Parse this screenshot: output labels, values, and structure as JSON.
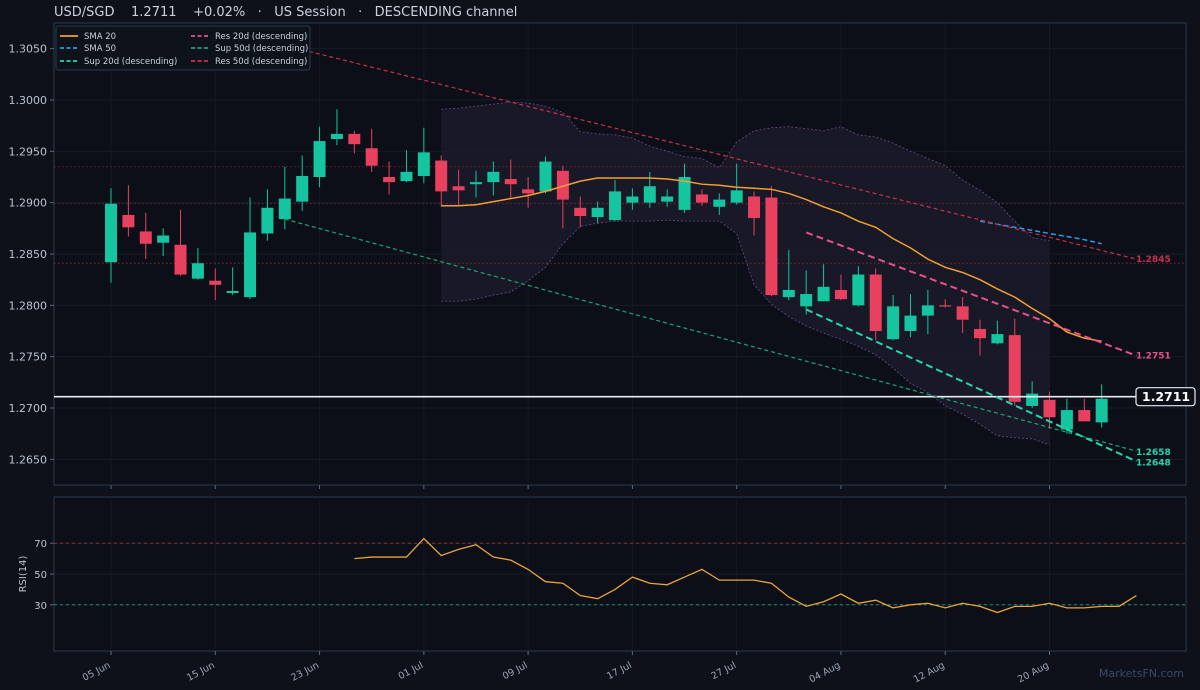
{
  "header": {
    "pair": "USD/SGD",
    "price": "1.2711",
    "change": "+0.02%",
    "sep1": "·",
    "session": "US Session",
    "sep2": "·",
    "pattern": "DESCENDING channel"
  },
  "watermark": "MarketsFN.com",
  "colors": {
    "bg": "#0e111a",
    "up": "#14c5a0",
    "down": "#e8415f",
    "sma20": "#f0a030",
    "sma50": "#2e9be0",
    "res": "#e8508a",
    "res50": "#c8304f",
    "sup": "#26d6b0",
    "sup50": "#1aa576",
    "rsi": "#e8a43a"
  },
  "legend": [
    {
      "label": "SMA 20",
      "color": "#f0a030",
      "style": "solid"
    },
    {
      "label": "Res 20d (descending)",
      "color": "#e8508a",
      "style": "dashed"
    },
    {
      "label": "SMA 50",
      "color": "#2e9be0",
      "style": "dashed"
    },
    {
      "label": "Sup 50d (descending)",
      "color": "#1aa576",
      "style": "dashed"
    },
    {
      "label": "Sup 20d (descending)",
      "color": "#26d6b0",
      "style": "dashed"
    },
    {
      "label": "Res 50d (descending)",
      "color": "#c8304f",
      "style": "dashed"
    }
  ],
  "price_labels": {
    "current": "1.2711",
    "res50": "1.2845",
    "res20": "1.2751",
    "sup50": "1.2658",
    "sup20": "1.2648"
  },
  "chart_data": {
    "type": "candlestick",
    "ylim": [
      1.2625,
      1.3075
    ],
    "yticks": [
      "1.2650",
      "1.2700",
      "1.2750",
      "1.2800",
      "1.2850",
      "1.2900",
      "1.2950",
      "1.3000",
      "1.3050"
    ],
    "ytick_values": [
      1.265,
      1.27,
      1.275,
      1.28,
      1.285,
      1.29,
      1.295,
      1.3,
      1.305
    ],
    "xticks": [
      "05 Jun",
      "15 Jun",
      "23 Jun",
      "01 Jul",
      "09 Jul",
      "17 Jul",
      "27 Jul",
      "04 Aug",
      "12 Aug",
      "20 Aug"
    ],
    "xtick_index": [
      0,
      6,
      12,
      18,
      24,
      30,
      36,
      42,
      48,
      54
    ],
    "horizontal_levels": [
      1.2935,
      1.2899,
      1.2841
    ],
    "current_price": 1.2711,
    "candles": [
      [
        1.2842,
        1.2914,
        1.2822,
        1.2899
      ],
      [
        1.2888,
        1.2917,
        1.2867,
        1.2876
      ],
      [
        1.2872,
        1.289,
        1.2845,
        1.286
      ],
      [
        1.2861,
        1.2875,
        1.2848,
        1.2868
      ],
      [
        1.2859,
        1.2893,
        1.2829,
        1.283
      ],
      [
        1.2826,
        1.2856,
        1.2825,
        1.2841
      ],
      [
        1.2824,
        1.2836,
        1.2805,
        1.282
      ],
      [
        1.2812,
        1.2837,
        1.281,
        1.2814
      ],
      [
        1.2808,
        1.2905,
        1.2806,
        1.2871
      ],
      [
        1.287,
        1.2913,
        1.2863,
        1.2895
      ],
      [
        1.2884,
        1.2935,
        1.2874,
        1.2904
      ],
      [
        1.2901,
        1.2946,
        1.2892,
        1.2926
      ],
      [
        1.2925,
        1.2974,
        1.2915,
        1.296
      ],
      [
        1.2962,
        1.2991,
        1.2956,
        1.2967
      ],
      [
        1.2967,
        1.297,
        1.2948,
        1.2957
      ],
      [
        1.2953,
        1.2972,
        1.293,
        1.2936
      ],
      [
        1.2925,
        1.294,
        1.2908,
        1.292
      ],
      [
        1.2921,
        1.2951,
        1.292,
        1.293
      ],
      [
        1.2926,
        1.2973,
        1.2919,
        1.2949
      ],
      [
        1.2941,
        1.2946,
        1.2896,
        1.2911
      ],
      [
        1.2916,
        1.2932,
        1.2897,
        1.2912
      ],
      [
        1.2918,
        1.2931,
        1.2905,
        1.292
      ],
      [
        1.292,
        1.294,
        1.2907,
        1.293
      ],
      [
        1.2923,
        1.2942,
        1.2904,
        1.2918
      ],
      [
        1.2913,
        1.2925,
        1.2895,
        1.2909
      ],
      [
        1.2911,
        1.2945,
        1.2909,
        1.294
      ],
      [
        1.2931,
        1.2936,
        1.2875,
        1.2903
      ],
      [
        1.2895,
        1.2906,
        1.2876,
        1.2887
      ],
      [
        1.2886,
        1.2901,
        1.288,
        1.2895
      ],
      [
        1.2883,
        1.2922,
        1.2882,
        1.2911
      ],
      [
        1.29,
        1.2914,
        1.2893,
        1.2906
      ],
      [
        1.29,
        1.293,
        1.2895,
        1.2916
      ],
      [
        1.2901,
        1.2913,
        1.2896,
        1.2906
      ],
      [
        1.2893,
        1.2938,
        1.289,
        1.2925
      ],
      [
        1.2908,
        1.2913,
        1.2897,
        1.29
      ],
      [
        1.2896,
        1.2909,
        1.2888,
        1.2903
      ],
      [
        1.29,
        1.2938,
        1.2898,
        1.2912
      ],
      [
        1.2906,
        1.2911,
        1.2868,
        1.2885
      ],
      [
        1.2905,
        1.2916,
        1.2809,
        1.281
      ],
      [
        1.2808,
        1.2854,
        1.2805,
        1.2815
      ],
      [
        1.2799,
        1.2834,
        1.2791,
        1.2811
      ],
      [
        1.2804,
        1.284,
        1.2804,
        1.2818
      ],
      [
        1.2815,
        1.283,
        1.2805,
        1.2806
      ],
      [
        1.28,
        1.2838,
        1.2799,
        1.283
      ],
      [
        1.283,
        1.2836,
        1.2766,
        1.2775
      ],
      [
        1.2767,
        1.281,
        1.2766,
        1.2799
      ],
      [
        1.2775,
        1.2811,
        1.2769,
        1.279
      ],
      [
        1.279,
        1.2815,
        1.2772,
        1.28
      ],
      [
        1.28,
        1.2806,
        1.2798,
        1.2799
      ],
      [
        1.2799,
        1.2808,
        1.2773,
        1.2786
      ],
      [
        1.2777,
        1.2786,
        1.2751,
        1.2768
      ],
      [
        1.2763,
        1.2785,
        1.2762,
        1.2772
      ],
      [
        1.2771,
        1.2787,
        1.2702,
        1.2706
      ],
      [
        1.2702,
        1.2726,
        1.27,
        1.2714
      ],
      [
        1.2708,
        1.2716,
        1.268,
        1.2691
      ],
      [
        1.2679,
        1.2709,
        1.2675,
        1.2698
      ],
      [
        1.2698,
        1.2709,
        1.2687,
        1.2687
      ],
      [
        1.2686,
        1.2723,
        1.2681,
        1.2709
      ]
    ],
    "sma20_start": 19,
    "sma20": [
      1.2897,
      1.2897,
      1.2898,
      1.2901,
      1.2904,
      1.2907,
      1.2911,
      1.2916,
      1.2921,
      1.2924,
      1.2924,
      1.2924,
      1.2924,
      1.2923,
      1.2921,
      1.2918,
      1.2917,
      1.2915,
      1.2914,
      1.2913,
      1.2909,
      1.2903,
      1.2896,
      1.289,
      1.2882,
      1.2876,
      1.2865,
      1.2856,
      1.2845,
      1.2837,
      1.2832,
      1.2825,
      1.2816,
      1.2808,
      1.2797,
      1.2787,
      1.2774,
      1.2768,
      1.2765
    ],
    "sma50_start": 50,
    "sma50": [
      1.2882,
      1.2879,
      1.2876,
      1.2873,
      1.287,
      1.2867,
      1.2864,
      1.286
    ],
    "band_start": 19,
    "band_upper": [
      1.2991,
      1.2992,
      1.2994,
      1.2996,
      1.2998,
      1.2997,
      1.2994,
      1.2988,
      1.2969,
      1.2967,
      1.2966,
      1.2963,
      1.2955,
      1.295,
      1.2945,
      1.2943,
      1.2934,
      1.2959,
      1.297,
      1.2973,
      1.2974,
      1.2972,
      1.297,
      1.2974,
      1.2966,
      1.2964,
      1.2958,
      1.295,
      1.2943,
      1.2936,
      1.2922,
      1.2912,
      1.29,
      1.2882,
      1.2866,
      1.2863
    ],
    "band_lower": [
      1.2804,
      1.2804,
      1.2806,
      1.281,
      1.2813,
      1.2824,
      1.2837,
      1.286,
      1.2877,
      1.288,
      1.2882,
      1.2882,
      1.2882,
      1.2883,
      1.2882,
      1.2882,
      1.2882,
      1.287,
      1.282,
      1.2801,
      1.2789,
      1.278,
      1.2773,
      1.2767,
      1.276,
      1.2752,
      1.2739,
      1.2724,
      1.2715,
      1.2702,
      1.2694,
      1.2684,
      1.2673,
      1.2671,
      1.267,
      1.2664
    ],
    "trendlines": [
      {
        "name": "Res 50d (descending)",
        "x": [
          11,
          59
        ],
        "y": [
          1.3049,
          1.2845
        ]
      },
      {
        "name": "Sup 50d (descending)",
        "x": [
          10,
          59
        ],
        "y": [
          1.2884,
          1.2658
        ]
      },
      {
        "name": "Res 20d (descending)",
        "x": [
          40,
          59
        ],
        "y": [
          1.2871,
          1.2751
        ]
      },
      {
        "name": "Sup 20d (descending)",
        "x": [
          40,
          59
        ],
        "y": [
          1.2796,
          1.2648
        ]
      }
    ],
    "rsi": {
      "label": "RSI(14)",
      "ylim": [
        0,
        100
      ],
      "yticks": [
        "30",
        "50",
        "70"
      ],
      "ytick_values": [
        30,
        50,
        70
      ],
      "levels": [
        70,
        30
      ],
      "start": 14,
      "values": [
        60,
        61,
        61,
        61,
        73,
        62,
        66,
        69,
        61,
        59,
        53,
        45,
        44,
        36,
        34,
        40,
        48,
        44,
        43,
        48,
        53,
        46,
        46,
        46,
        44,
        35,
        29,
        32,
        37,
        31,
        33,
        28,
        30,
        31,
        28,
        31,
        29,
        25,
        29,
        29,
        31,
        28,
        28,
        29,
        29,
        36
      ]
    }
  }
}
